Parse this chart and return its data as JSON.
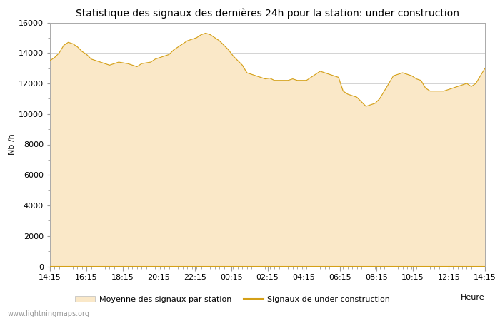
{
  "title": "Statistique des signaux des dernières 24h pour la station: under construction",
  "xlabel": "Heure",
  "ylabel": "Nb /h",
  "ylim": [
    0,
    16000
  ],
  "yticks": [
    0,
    2000,
    4000,
    6000,
    8000,
    10000,
    12000,
    14000,
    16000
  ],
  "x_tick_labels": [
    "14:15",
    "16:15",
    "18:15",
    "20:15",
    "22:15",
    "00:15",
    "02:15",
    "04:15",
    "06:15",
    "08:15",
    "10:15",
    "12:15",
    "14:15"
  ],
  "fill_color": "#FAE8C8",
  "line_color": "#D4A017",
  "background_color": "#FFFFFF",
  "watermark": "www.lightningmaps.org",
  "legend_fill_label": "Moyenne des signaux par station",
  "legend_line_label": "Signaux de under construction",
  "x_values": [
    0,
    1,
    2,
    3,
    4,
    5,
    6,
    7,
    8,
    9,
    10,
    11,
    12,
    13,
    14,
    15,
    16,
    17,
    18,
    19,
    20,
    21,
    22,
    23,
    24,
    25,
    26,
    27,
    28,
    29,
    30,
    31,
    32,
    33,
    34,
    35,
    36,
    37,
    38,
    39,
    40,
    41,
    42,
    43,
    44,
    45,
    46,
    47,
    48,
    49,
    50,
    51,
    52,
    53,
    54,
    55,
    56,
    57,
    58,
    59,
    60,
    61,
    62,
    63,
    64,
    65,
    66,
    67,
    68,
    69,
    70,
    71,
    72,
    73,
    74,
    75,
    76,
    77,
    78,
    79,
    80,
    81,
    82,
    83,
    84,
    85,
    86,
    87,
    88,
    89,
    90,
    91,
    92,
    93,
    94,
    95
  ],
  "y_area": [
    13500,
    13700,
    14000,
    14500,
    14700,
    14600,
    14400,
    14100,
    13900,
    13600,
    13500,
    13400,
    13300,
    13200,
    13300,
    13400,
    13350,
    13300,
    13200,
    13100,
    13300,
    13350,
    13400,
    13600,
    13700,
    13800,
    13900,
    14200,
    14400,
    14600,
    14800,
    14900,
    15000,
    15200,
    15300,
    15200,
    15000,
    14800,
    14500,
    14200,
    13800,
    13500,
    13200,
    12700,
    12600,
    12500,
    12400,
    12300,
    12350,
    12200,
    12200,
    12200,
    12200,
    12300,
    12200,
    12200,
    12200,
    12400,
    12600,
    12800,
    12700,
    12600,
    12500,
    12400,
    11500,
    11300,
    11200,
    11100,
    10800,
    10500,
    10600,
    10700,
    11000,
    11500,
    12000,
    12500,
    12600,
    12700,
    12600,
    12500,
    12300,
    12200,
    11700,
    11500,
    11500,
    11500,
    11500,
    11600,
    11700,
    11800,
    11900,
    12000,
    11800,
    12000,
    12500,
    13000
  ],
  "y_line": [
    13500,
    13700,
    14000,
    14500,
    14700,
    14600,
    14400,
    14100,
    13900,
    13600,
    13500,
    13400,
    13300,
    13200,
    13300,
    13400,
    13350,
    13300,
    13200,
    13100,
    13300,
    13350,
    13400,
    13600,
    13700,
    13800,
    13900,
    14200,
    14400,
    14600,
    14800,
    14900,
    15000,
    15200,
    15300,
    15200,
    15000,
    14800,
    14500,
    14200,
    13800,
    13500,
    13200,
    12700,
    12600,
    12500,
    12400,
    12300,
    12350,
    12200,
    12200,
    12200,
    12200,
    12300,
    12200,
    12200,
    12200,
    12400,
    12600,
    12800,
    12700,
    12600,
    12500,
    12400,
    11500,
    11300,
    11200,
    11100,
    10800,
    10500,
    10600,
    10700,
    11000,
    11500,
    12000,
    12500,
    12600,
    12700,
    12600,
    12500,
    12300,
    12200,
    11700,
    11500,
    11500,
    11500,
    11500,
    11600,
    11700,
    11800,
    11900,
    12000,
    11800,
    12000,
    12500,
    13000
  ],
  "title_fontsize": 10,
  "axis_fontsize": 8,
  "tick_fontsize": 8,
  "legend_fontsize": 8,
  "grid_color": "#CCCCCC",
  "spine_color": "#AAAAAA"
}
